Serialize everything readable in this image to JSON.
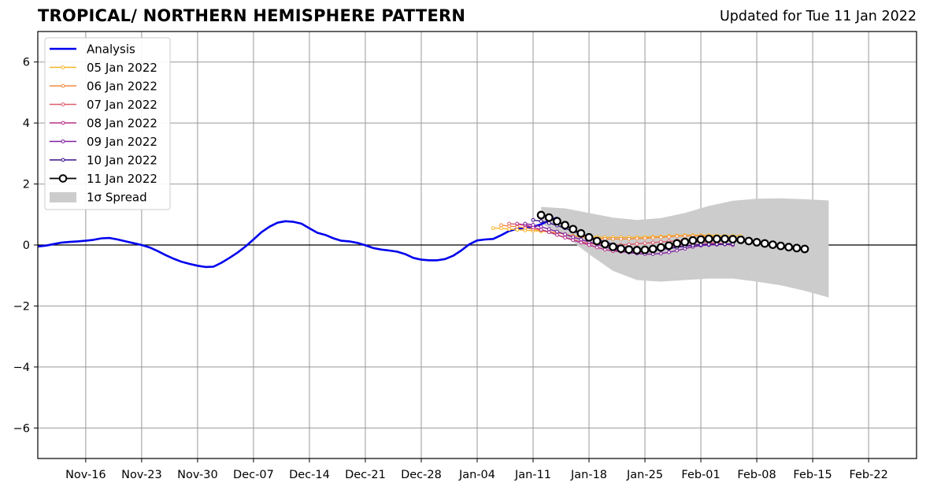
{
  "title": "TROPICAL/ NORTHERN HEMISPHERE PATTERN",
  "subtitle": "Updated for Tue 11 Jan 2022",
  "chart_data": {
    "type": "line",
    "xlim": [
      "2021-11-10",
      "2022-02-28"
    ],
    "ylim": [
      -7,
      7
    ],
    "grid": true,
    "legend_position": "top-left",
    "x_ticks": [
      "2021-11-16",
      "2021-11-23",
      "2021-11-30",
      "2021-12-07",
      "2021-12-14",
      "2021-12-21",
      "2021-12-28",
      "2022-01-04",
      "2022-01-11",
      "2022-01-18",
      "2022-01-25",
      "2022-02-01",
      "2022-02-08",
      "2022-02-15",
      "2022-02-22"
    ],
    "x_tick_labels": [
      "Nov-16",
      "Nov-23",
      "Nov-30",
      "Dec-07",
      "Dec-14",
      "Dec-21",
      "Dec-28",
      "Jan-04",
      "Jan-11",
      "Jan-18",
      "Jan-25",
      "Feb-01",
      "Feb-08",
      "Feb-15",
      "Feb-22"
    ],
    "y_ticks": [
      -6,
      -4,
      -2,
      0,
      2,
      4,
      6
    ],
    "y_tick_labels": [
      "−6",
      "−4",
      "−2",
      "0",
      "2",
      "4",
      "6"
    ],
    "analysis": {
      "name": "Analysis",
      "color": "#0000ee",
      "start": "2021-11-10",
      "values": [
        -0.05,
        -0.02,
        0.03,
        0.08,
        0.1,
        0.12,
        0.14,
        0.17,
        0.22,
        0.23,
        0.18,
        0.12,
        0.06,
        0.0,
        -0.08,
        -0.2,
        -0.33,
        -0.45,
        -0.55,
        -0.62,
        -0.68,
        -0.72,
        -0.71,
        -0.58,
        -0.42,
        -0.25,
        -0.05,
        0.18,
        0.42,
        0.6,
        0.73,
        0.78,
        0.76,
        0.7,
        0.55,
        0.4,
        0.33,
        0.22,
        0.14,
        0.12,
        0.07,
        -0.01,
        -0.1,
        -0.15,
        -0.18,
        -0.22,
        -0.3,
        -0.42,
        -0.48,
        -0.5,
        -0.5,
        -0.46,
        -0.35,
        -0.18,
        0.02,
        0.15,
        0.18,
        0.2,
        0.32,
        0.46,
        0.53,
        0.56,
        0.6,
        0.68,
        0.8,
        0.9
      ]
    },
    "forecasts": [
      {
        "name": "05 Jan 2022",
        "color": "#f5b62a",
        "start": "2022-01-06",
        "values": [
          0.55,
          0.55,
          0.52,
          0.5,
          0.48,
          0.47,
          0.45,
          0.43,
          0.4,
          0.35,
          0.3,
          0.28,
          0.27,
          0.26,
          0.25,
          0.25,
          0.25,
          0.25,
          0.25,
          0.26,
          0.27,
          0.28,
          0.3,
          0.31,
          0.32,
          0.32,
          0.32,
          0.32,
          0.31,
          0.3,
          0.3,
          0.3
        ]
      },
      {
        "name": "06 Jan 2022",
        "color": "#f28c40",
        "start": "2022-01-07",
        "values": [
          0.65,
          0.62,
          0.6,
          0.56,
          0.52,
          0.48,
          0.44,
          0.4,
          0.35,
          0.3,
          0.26,
          0.24,
          0.22,
          0.2,
          0.2,
          0.2,
          0.2,
          0.21,
          0.22,
          0.24,
          0.25,
          0.27,
          0.29,
          0.3,
          0.3,
          0.3,
          0.28,
          0.26,
          0.24,
          0.22
        ]
      },
      {
        "name": "07 Jan 2022",
        "color": "#de5a6a",
        "start": "2022-01-08",
        "values": [
          0.7,
          0.68,
          0.64,
          0.58,
          0.5,
          0.42,
          0.33,
          0.25,
          0.17,
          0.1,
          0.05,
          0.02,
          0.0,
          0.0,
          0.0,
          0.02,
          0.04,
          0.06,
          0.08,
          0.1,
          0.12,
          0.14,
          0.14,
          0.12,
          0.1,
          0.08,
          0.06,
          0.04,
          0.02
        ]
      },
      {
        "name": "08 Jan 2022",
        "color": "#b9318a",
        "start": "2022-01-09",
        "values": [
          0.7,
          0.66,
          0.58,
          0.5,
          0.42,
          0.33,
          0.24,
          0.16,
          0.08,
          0.0,
          -0.08,
          -0.15,
          -0.2,
          -0.22,
          -0.24,
          -0.24,
          -0.22,
          -0.18,
          -0.14,
          -0.1,
          -0.06,
          -0.02,
          0.0,
          0.02,
          0.03,
          0.03,
          0.02,
          0.0
        ]
      },
      {
        "name": "09 Jan 2022",
        "color": "#7f1fa0",
        "start": "2022-01-10",
        "values": [
          0.7,
          0.66,
          0.6,
          0.52,
          0.44,
          0.35,
          0.26,
          0.18,
          0.1,
          0.02,
          -0.06,
          -0.14,
          -0.2,
          -0.25,
          -0.28,
          -0.3,
          -0.3,
          -0.28,
          -0.24,
          -0.18,
          -0.12,
          -0.06,
          -0.02,
          0.0,
          0.01,
          0.02,
          0.02
        ]
      },
      {
        "name": "10 Jan 2022",
        "color": "#3a0f8a",
        "start": "2022-01-11",
        "values": [
          0.82,
          0.78,
          0.72,
          0.64,
          0.55,
          0.45,
          0.36,
          0.27,
          0.18,
          0.1,
          0.02,
          -0.05,
          -0.1,
          -0.14,
          -0.16,
          -0.16,
          -0.14,
          -0.12,
          -0.08,
          -0.04,
          -0.01,
          0.01,
          0.02,
          0.03,
          0.03,
          0.03
        ]
      }
    ],
    "latest": {
      "name": "11 Jan 2022",
      "color": "#000000",
      "start": "2022-01-12",
      "values": [
        0.98,
        0.9,
        0.78,
        0.65,
        0.52,
        0.38,
        0.25,
        0.13,
        0.03,
        -0.06,
        -0.12,
        -0.15,
        -0.17,
        -0.16,
        -0.13,
        -0.08,
        -0.02,
        0.05,
        0.1,
        0.15,
        0.18,
        0.2,
        0.2,
        0.2,
        0.19,
        0.17,
        0.13,
        0.09,
        0.05,
        0.01,
        -0.03,
        -0.07,
        -0.1,
        -0.13
      ]
    },
    "spread": {
      "name": "1σ Spread",
      "color": "#cccccc",
      "start": "2022-01-12",
      "step_days": 3,
      "upper": [
        1.25,
        1.2,
        1.05,
        0.9,
        0.82,
        0.88,
        1.05,
        1.28,
        1.45,
        1.52,
        1.53,
        1.5,
        1.46
      ],
      "lower": [
        0.7,
        0.3,
        -0.3,
        -0.85,
        -1.15,
        -1.2,
        -1.15,
        -1.1,
        -1.1,
        -1.2,
        -1.32,
        -1.5,
        -1.72
      ]
    }
  }
}
